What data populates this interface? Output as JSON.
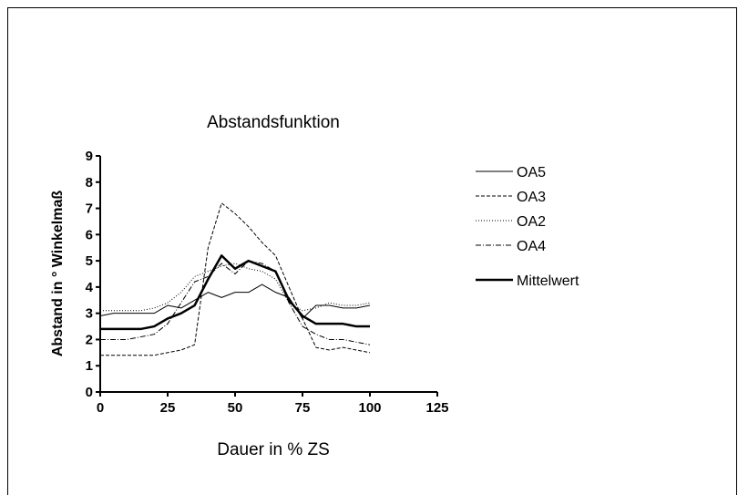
{
  "chart_data": {
    "type": "line",
    "title": "Abstandsfunktion",
    "x_label": "Dauer in % ZS",
    "y_label": "Abstand in ° Winkelmaß",
    "x": [
      0,
      5,
      10,
      15,
      20,
      25,
      30,
      35,
      40,
      45,
      50,
      55,
      60,
      65,
      70,
      75,
      80,
      85,
      90,
      95,
      100
    ],
    "series": [
      {
        "name": "OA5",
        "color": "#000000",
        "line_style": "solid",
        "values": [
          2.9,
          3.0,
          3.0,
          3.0,
          3.0,
          3.3,
          3.2,
          3.5,
          3.8,
          3.6,
          3.8,
          3.8,
          4.1,
          3.8,
          3.6,
          2.8,
          3.3,
          3.3,
          3.2,
          3.2,
          3.3
        ]
      },
      {
        "name": "OA3",
        "color": "#000000",
        "line_style": "dashed",
        "values": [
          1.4,
          1.4,
          1.4,
          1.4,
          1.4,
          1.5,
          1.6,
          1.8,
          5.5,
          7.2,
          6.8,
          6.3,
          5.7,
          5.2,
          4.0,
          2.8,
          1.7,
          1.6,
          1.7,
          1.6,
          1.5
        ]
      },
      {
        "name": "OA2",
        "color": "#000000",
        "line_style": "dotted",
        "values": [
          3.1,
          3.1,
          3.1,
          3.1,
          3.2,
          3.4,
          3.8,
          4.4,
          4.6,
          4.8,
          4.9,
          4.7,
          4.6,
          4.3,
          3.4,
          3.1,
          3.2,
          3.4,
          3.3,
          3.3,
          3.4
        ]
      },
      {
        "name": "OA4",
        "color": "#000000",
        "line_style": "dashdot",
        "values": [
          2.0,
          2.0,
          2.0,
          2.1,
          2.2,
          2.6,
          3.4,
          4.2,
          4.4,
          4.9,
          4.5,
          5.0,
          4.9,
          4.6,
          3.4,
          2.5,
          2.2,
          2.0,
          2.0,
          1.9,
          1.8
        ]
      },
      {
        "name": "Mittelwert",
        "color": "#000000",
        "line_style": "bold",
        "values": [
          2.4,
          2.4,
          2.4,
          2.4,
          2.5,
          2.8,
          3.0,
          3.3,
          4.3,
          5.2,
          4.7,
          5.0,
          4.8,
          4.6,
          3.5,
          2.9,
          2.6,
          2.6,
          2.6,
          2.5,
          2.5
        ]
      }
    ],
    "xlim": [
      0,
      125
    ],
    "xticks": [
      0,
      25,
      50,
      75,
      100,
      125
    ],
    "ylim": [
      0,
      9
    ],
    "yticks": [
      0,
      1,
      2,
      3,
      4,
      5,
      6,
      7,
      8,
      9
    ],
    "legend": "right",
    "grid": false
  }
}
